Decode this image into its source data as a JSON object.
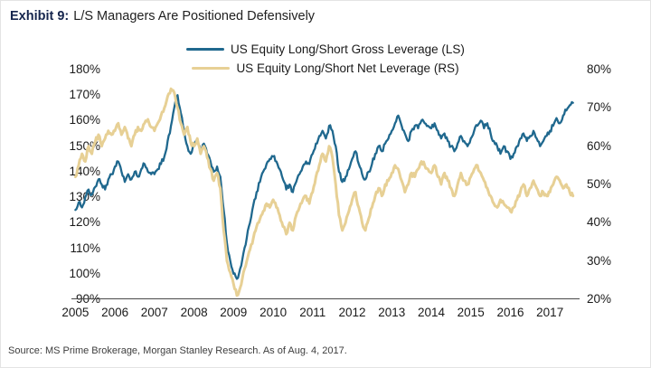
{
  "title": {
    "label": "Exhibit 9:",
    "text": "L/S Managers Are Positioned Defensively"
  },
  "legend": [
    {
      "name": "US Equity Long/Short Gross Leverage (LS)",
      "color": "#1f688e"
    },
    {
      "name": "US Equity Long/Short Net Leverage (RS)",
      "color": "#e7d095"
    }
  ],
  "source": "Source: MS Prime Brokerage, Morgan Stanley Research. As of Aug. 4, 2017.",
  "chart_data": {
    "type": "line",
    "title": "Exhibit 9: L/S Managers Are Positioned Defensively",
    "grid": false,
    "legend_position": "top-center",
    "axis_color": "#4a4a4a",
    "x_start": 2005.0,
    "x_step_years": 0.0833333,
    "x_axis": {
      "min": 2004.9,
      "max": 2017.75,
      "tick_values": [
        2005,
        2006,
        2007,
        2008,
        2009,
        2010,
        2011,
        2012,
        2013,
        2014,
        2015,
        2016,
        2017
      ],
      "tick_labels": [
        "2005",
        "2006",
        "2007",
        "2008",
        "2009",
        "2010",
        "2011",
        "2012",
        "2013",
        "2014",
        "2015",
        "2016",
        "2017"
      ]
    },
    "left_axis": {
      "min": 90,
      "max": 180,
      "tick_values": [
        180,
        170,
        160,
        150,
        140,
        130,
        120,
        110,
        100,
        90
      ],
      "tick_labels": [
        "180%",
        "170%",
        "160%",
        "150%",
        "140%",
        "130%",
        "120%",
        "110%",
        "100%",
        "90%"
      ]
    },
    "right_axis": {
      "min": 20,
      "max": 80,
      "tick_values": [
        80,
        70,
        60,
        50,
        40,
        30,
        20
      ],
      "tick_labels": [
        "80%",
        "70%",
        "60%",
        "50%",
        "40%",
        "30%",
        "20%"
      ]
    },
    "series": [
      {
        "key": "gross",
        "name": "US Equity Long/Short Gross Leverage (LS)",
        "axis": "left",
        "color": "#1f688e",
        "stroke_width": 2.3,
        "values": [
          125,
          128,
          126,
          130,
          133,
          131,
          134,
          137,
          135,
          133,
          137,
          139,
          142,
          144,
          140,
          136,
          139,
          137,
          140,
          138,
          141,
          143,
          140,
          139,
          139,
          141,
          143,
          146,
          152,
          158,
          165,
          170,
          163,
          156,
          150,
          147,
          150,
          153,
          148,
          151,
          147,
          144,
          140,
          142,
          138,
          125,
          112,
          105,
          100,
          98,
          102,
          108,
          114,
          120,
          127,
          132,
          136,
          140,
          143,
          145,
          146,
          144,
          141,
          137,
          133,
          135,
          132,
          136,
          139,
          142,
          144,
          143,
          147,
          151,
          154,
          156,
          153,
          158,
          156,
          150,
          140,
          136,
          138,
          141,
          145,
          148,
          143,
          139,
          137,
          140,
          143,
          147,
          150,
          148,
          151,
          153,
          156,
          159,
          162,
          158,
          155,
          152,
          156,
          158,
          157,
          160,
          159,
          158,
          157,
          159,
          156,
          153,
          155,
          152,
          150,
          148,
          151,
          154,
          152,
          150,
          153,
          156,
          158,
          160,
          157,
          159,
          155,
          152,
          150,
          147,
          150,
          148,
          145,
          147,
          150,
          153,
          155,
          152,
          154,
          156,
          153,
          150,
          152,
          154,
          156,
          158,
          161,
          159,
          162,
          164,
          166,
          167
        ]
      },
      {
        "key": "net",
        "name": "US Equity Long/Short Net Leverage (RS)",
        "axis": "right",
        "color": "#e7d095",
        "stroke_width": 3.0,
        "values": [
          52,
          55,
          58,
          56,
          60,
          58,
          61,
          63,
          60,
          62,
          64,
          63,
          64,
          66,
          63,
          65,
          62,
          60,
          63,
          65,
          64,
          66,
          67,
          65,
          64,
          66,
          68,
          70,
          73,
          75,
          74,
          70,
          66,
          63,
          65,
          61,
          60,
          62,
          58,
          60,
          57,
          54,
          51,
          53,
          49,
          38,
          30,
          27,
          24,
          21,
          23,
          27,
          30,
          33,
          36,
          39,
          41,
          43,
          45,
          44,
          46,
          44,
          42,
          39,
          37,
          40,
          38,
          42,
          44,
          46,
          47,
          45,
          48,
          52,
          55,
          58,
          56,
          60,
          57,
          50,
          42,
          38,
          40,
          43,
          46,
          48,
          44,
          40,
          38,
          41,
          44,
          47,
          49,
          47,
          50,
          51,
          53,
          55,
          54,
          51,
          48,
          50,
          53,
          52,
          54,
          56,
          55,
          54,
          53,
          55,
          52,
          50,
          53,
          51,
          49,
          47,
          50,
          53,
          51,
          50,
          52,
          54,
          55,
          53,
          51,
          49,
          47,
          45,
          44,
          46,
          45,
          44,
          43,
          44,
          46,
          48,
          50,
          47,
          49,
          51,
          49,
          47,
          48,
          47,
          48,
          50,
          52,
          51,
          49,
          50,
          48,
          47
        ]
      }
    ]
  }
}
